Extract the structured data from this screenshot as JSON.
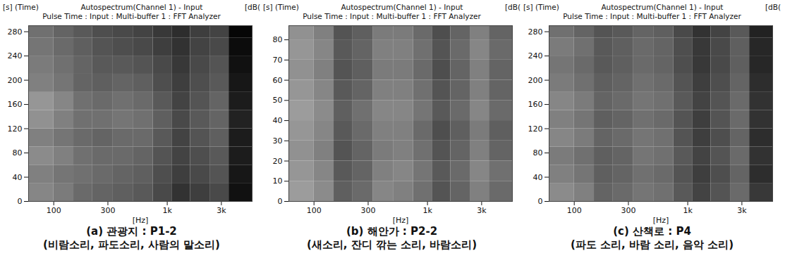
{
  "chart_data": [
    {
      "type": "heatmap",
      "title": "Autospectrum(Channel 1) - Input",
      "subtitle": "Pulse Time : Input : Multi-buffer 1 : FFT Analyzer",
      "y_label": "[s] (Time)",
      "color_label": "[dB(",
      "x_label": "[Hz]",
      "caption": [
        "(a) 관광지 : P1-2",
        "(비람소리, 파도소리, 사람의 말소리)"
      ],
      "log": "x",
      "grid": false,
      "xlim": [
        60,
        5600
      ],
      "xticks": [
        100,
        300,
        {
          "value": 1000,
          "label": "1k"
        },
        {
          "value": 3000,
          "label": "3k"
        }
      ],
      "ylim": [
        0,
        290
      ],
      "yticks": [
        0,
        40,
        80,
        120,
        160,
        200,
        240,
        280
      ],
      "x_bins": [
        60,
        100,
        150,
        220,
        330,
        500,
        750,
        1100,
        1600,
        2400,
        3500,
        5600
      ],
      "y_bins": [
        0,
        30,
        60,
        90,
        120,
        150,
        180,
        210,
        240,
        270,
        290
      ],
      "cells": [
        [
          52,
          48,
          42,
          40,
          38,
          36,
          30,
          22,
          26,
          30,
          10
        ],
        [
          50,
          46,
          44,
          42,
          40,
          38,
          32,
          26,
          30,
          34,
          12
        ],
        [
          54,
          50,
          44,
          42,
          42,
          40,
          34,
          28,
          32,
          36,
          14
        ],
        [
          50,
          46,
          42,
          40,
          42,
          42,
          36,
          28,
          34,
          38,
          14
        ],
        [
          56,
          50,
          44,
          44,
          46,
          44,
          38,
          30,
          36,
          40,
          16
        ],
        [
          58,
          52,
          44,
          42,
          44,
          42,
          36,
          28,
          34,
          40,
          14
        ],
        [
          50,
          46,
          40,
          38,
          40,
          38,
          32,
          26,
          32,
          36,
          12
        ],
        [
          48,
          44,
          40,
          36,
          36,
          34,
          30,
          24,
          30,
          34,
          10
        ],
        [
          46,
          42,
          38,
          34,
          32,
          30,
          26,
          22,
          28,
          30,
          8
        ],
        [
          44,
          40,
          36,
          32,
          30,
          28,
          24,
          20,
          26,
          28,
          6
        ]
      ]
    },
    {
      "type": "heatmap",
      "title": "Autospectrum(Channel 1) - Input",
      "subtitle": "Pulse Time : Input : Multi-buffer 1 : FFT Analyzer",
      "y_label": "[s] (Time)",
      "color_label": "[dB(",
      "x_label": "[Hz]",
      "caption": [
        "(b) 해안가 : P2-2",
        "(새소리, 잔디 깎는 소리, 바람소리)"
      ],
      "log": "x",
      "grid": false,
      "xlim": [
        60,
        5600
      ],
      "xticks": [
        100,
        300,
        {
          "value": 1000,
          "label": "1k"
        },
        {
          "value": 3000,
          "label": "3k"
        }
      ],
      "ylim": [
        0,
        87
      ],
      "yticks": [
        0,
        10,
        20,
        30,
        40,
        50,
        60,
        70,
        80
      ],
      "x_bins": [
        60,
        100,
        150,
        220,
        330,
        500,
        750,
        1100,
        1600,
        2400,
        3500,
        5600
      ],
      "y_bins": [
        0,
        10,
        20,
        30,
        40,
        50,
        60,
        70,
        80,
        87
      ],
      "cells": [
        [
          60,
          54,
          38,
          42,
          52,
          50,
          44,
          34,
          40,
          50,
          42
        ],
        [
          58,
          52,
          36,
          40,
          50,
          52,
          46,
          36,
          42,
          52,
          44
        ],
        [
          56,
          50,
          34,
          40,
          48,
          50,
          44,
          34,
          40,
          50,
          40
        ],
        [
          58,
          52,
          36,
          42,
          50,
          50,
          42,
          32,
          38,
          48,
          38
        ],
        [
          60,
          54,
          38,
          44,
          52,
          52,
          46,
          36,
          42,
          52,
          42
        ],
        [
          58,
          52,
          36,
          40,
          50,
          50,
          44,
          34,
          40,
          50,
          40
        ],
        [
          56,
          50,
          34,
          38,
          48,
          48,
          42,
          32,
          40,
          50,
          40
        ],
        [
          58,
          52,
          36,
          40,
          50,
          50,
          44,
          34,
          42,
          52,
          42
        ],
        [
          56,
          50,
          34,
          38,
          48,
          48,
          42,
          32,
          40,
          50,
          40
        ]
      ]
    },
    {
      "type": "heatmap",
      "title": "Autospectrum(Channel 1) - Input",
      "subtitle": "Pulse Time : Input : Multi-buffer 1 : FFT Analyzer",
      "y_label": "[s] (Time)",
      "color_label": "[dB(",
      "x_label": "[Hz]",
      "caption": [
        "(c) 산책로 : P4",
        "(파도 소리, 바람 소리, 음악 소리)"
      ],
      "log": "x",
      "grid": false,
      "xlim": [
        60,
        5600
      ],
      "xticks": [
        100,
        300,
        {
          "value": 1000,
          "label": "1k"
        },
        {
          "value": 3000,
          "label": "3k"
        }
      ],
      "ylim": [
        0,
        290
      ],
      "yticks": [
        0,
        40,
        80,
        120,
        160,
        200,
        240,
        280
      ],
      "x_bins": [
        60,
        100,
        150,
        220,
        330,
        500,
        750,
        1100,
        1600,
        2400,
        3500,
        5600
      ],
      "y_bins": [
        0,
        30,
        60,
        90,
        120,
        150,
        180,
        210,
        240,
        270,
        290
      ],
      "cells": [
        [
          54,
          50,
          40,
          42,
          46,
          44,
          36,
          28,
          34,
          42,
          24
        ],
        [
          50,
          46,
          38,
          40,
          44,
          42,
          34,
          26,
          32,
          40,
          20
        ],
        [
          48,
          44,
          38,
          40,
          46,
          44,
          36,
          28,
          34,
          42,
          22
        ],
        [
          52,
          48,
          40,
          42,
          46,
          44,
          34,
          26,
          32,
          40,
          20
        ],
        [
          50,
          46,
          38,
          40,
          44,
          42,
          34,
          26,
          34,
          42,
          22
        ],
        [
          52,
          48,
          40,
          42,
          46,
          44,
          36,
          28,
          34,
          42,
          22
        ],
        [
          48,
          44,
          38,
          40,
          44,
          42,
          34,
          26,
          32,
          40,
          20
        ],
        [
          46,
          42,
          36,
          38,
          42,
          40,
          32,
          24,
          30,
          38,
          18
        ],
        [
          48,
          44,
          36,
          38,
          42,
          40,
          32,
          24,
          30,
          38,
          18
        ],
        [
          44,
          40,
          34,
          36,
          40,
          38,
          30,
          22,
          28,
          36,
          16
        ]
      ]
    }
  ]
}
